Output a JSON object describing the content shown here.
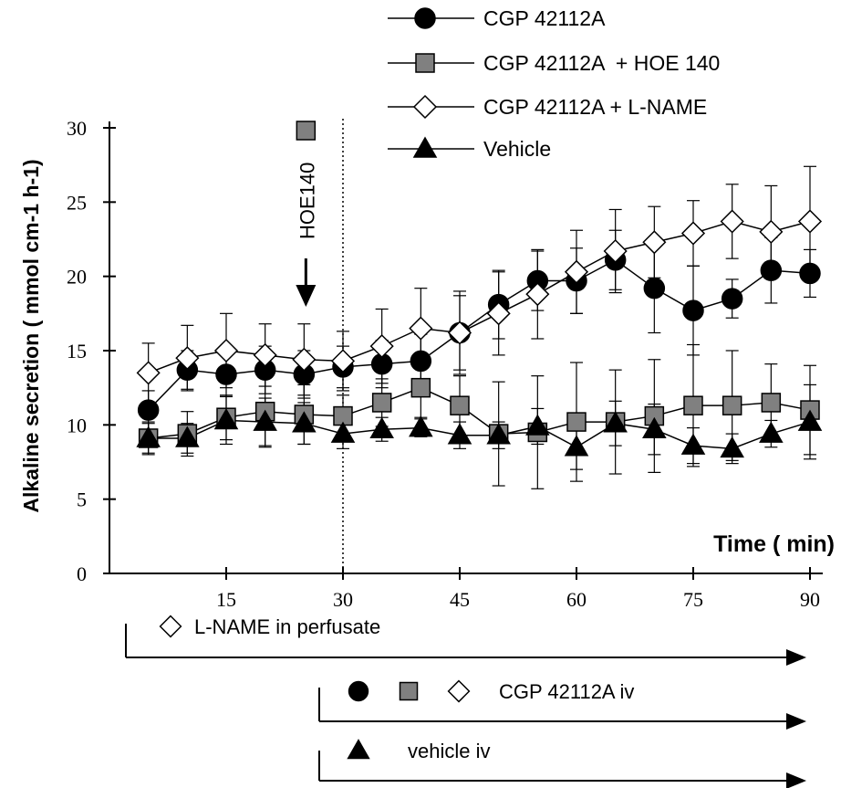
{
  "chart_data": {
    "type": "line",
    "ylabel": "Alkaline secretion ( mmol cm-1 h-1)",
    "xlabel": "Time ( min)",
    "xlim": [
      0,
      90
    ],
    "ylim": [
      0,
      30
    ],
    "xticks": [
      15,
      30,
      45,
      60,
      75,
      90
    ],
    "yticks": [
      0,
      5,
      10,
      15,
      20,
      25,
      30
    ],
    "x": [
      5,
      10,
      15,
      20,
      25,
      30,
      35,
      40,
      45,
      50,
      55,
      60,
      65,
      70,
      75,
      80,
      85,
      90
    ],
    "series": [
      {
        "name": "CGP 42112A",
        "marker": "circle",
        "fill": "#000000",
        "values": [
          11.0,
          13.7,
          13.4,
          13.7,
          13.4,
          13.9,
          14.1,
          14.3,
          16.2,
          18.1,
          19.7,
          19.7,
          21.1,
          19.2,
          17.7,
          18.5,
          20.4,
          20.2
        ],
        "errors": [
          1.3,
          1.3,
          1.5,
          1.6,
          1.6,
          1.4,
          1.6,
          1.8,
          2.5,
          2.3,
          2.0,
          2.2,
          2.0,
          3.0,
          3.0,
          1.3,
          2.2,
          1.6
        ]
      },
      {
        "name": "CGP 42112A  + HOE 140",
        "marker": "square",
        "fill": "#808080",
        "values": [
          9.1,
          9.4,
          10.5,
          10.9,
          10.7,
          10.6,
          11.5,
          12.5,
          11.3,
          9.4,
          9.5,
          10.2,
          10.2,
          10.6,
          11.3,
          11.3,
          11.5,
          11.0
        ],
        "errors": [
          1.1,
          1.5,
          1.5,
          2.4,
          2.0,
          1.4,
          1.6,
          2.0,
          2.0,
          3.5,
          3.8,
          4.0,
          3.5,
          3.8,
          4.1,
          3.7,
          2.6,
          3.0
        ]
      },
      {
        "name": "CGP 42112A + L-NAME",
        "marker": "diamond",
        "fill": "#ffffff",
        "values": [
          13.5,
          14.5,
          15.0,
          14.7,
          14.4,
          14.3,
          15.3,
          16.5,
          16.2,
          17.5,
          18.8,
          20.3,
          21.7,
          22.3,
          22.9,
          23.7,
          23.0,
          23.7
        ],
        "errors": [
          2.0,
          2.2,
          2.5,
          2.1,
          2.4,
          2.0,
          2.5,
          2.7,
          2.8,
          2.8,
          3.0,
          2.8,
          2.8,
          2.4,
          2.2,
          2.5,
          3.1,
          3.7
        ]
      },
      {
        "name": "Vehicle",
        "marker": "triangle",
        "fill": "#000000",
        "values": [
          9.1,
          9.1,
          10.3,
          10.2,
          10.1,
          9.4,
          9.7,
          9.8,
          9.3,
          9.3,
          9.9,
          8.5,
          10.1,
          9.7,
          8.6,
          8.4,
          9.4,
          10.2
        ],
        "errors": [
          1.0,
          1.0,
          1.6,
          1.6,
          1.4,
          1.0,
          0.8,
          0.6,
          0.9,
          0.9,
          1.2,
          1.5,
          1.5,
          1.7,
          1.2,
          1.0,
          0.9,
          2.5
        ]
      }
    ],
    "legend_position": "top-right",
    "annotations": {
      "dotted_line_x": 30,
      "hoe140": {
        "label": "HOE140",
        "x": 25,
        "marker": "square"
      }
    },
    "treatment_bars": [
      {
        "label": "L-NAME in perfusate",
        "markers": [
          "diamond"
        ],
        "start_x": 0
      },
      {
        "label": "CGP 42112A iv",
        "markers": [
          "circle",
          "square",
          "diamond"
        ],
        "start_x": 30
      },
      {
        "label": "vehicle iv",
        "markers": [
          "triangle"
        ],
        "start_x": 30
      }
    ]
  }
}
